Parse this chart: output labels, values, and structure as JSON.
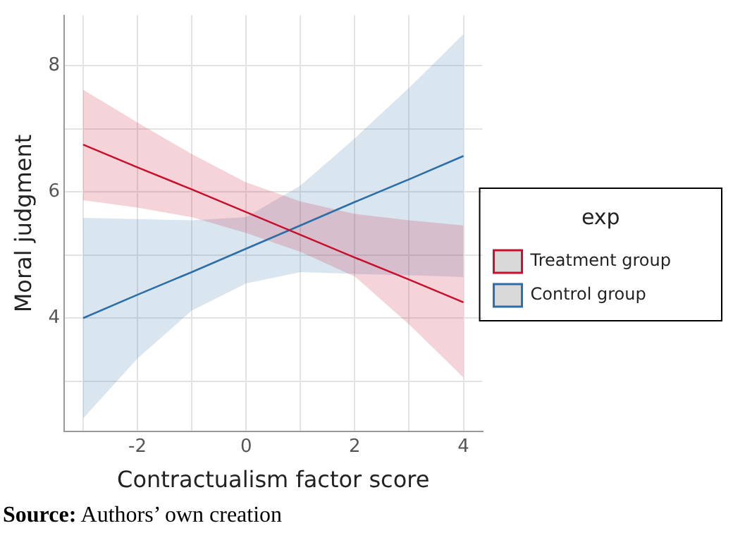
{
  "chart_data": {
    "type": "line",
    "xlabel": "Contractualism factor score",
    "ylabel": "Moral judgment",
    "legend_title": "exp",
    "series": [
      {
        "name": "Treatment group",
        "color": "#c8102e",
        "x": [
          -3,
          -2,
          -1,
          0,
          1,
          2,
          3,
          4
        ],
        "values": [
          6.75,
          6.39,
          6.04,
          5.68,
          5.32,
          4.96,
          4.61,
          4.25
        ],
        "lower": [
          5.87,
          5.75,
          5.6,
          5.35,
          5.05,
          4.66,
          3.9,
          3.06
        ],
        "upper": [
          7.62,
          7.1,
          6.6,
          6.15,
          5.85,
          5.65,
          5.55,
          5.47
        ]
      },
      {
        "name": "Control group",
        "color": "#2c6fa8",
        "x": [
          -3,
          -2,
          -1,
          0,
          1,
          2,
          3,
          4
        ],
        "values": [
          4.0,
          4.37,
          4.73,
          5.1,
          5.47,
          5.84,
          6.2,
          6.57
        ],
        "lower": [
          2.41,
          3.36,
          4.12,
          4.55,
          4.73,
          4.7,
          4.68,
          4.65
        ],
        "upper": [
          5.59,
          5.57,
          5.55,
          5.6,
          6.1,
          6.85,
          7.65,
          8.5
        ]
      }
    ],
    "xlim": [
      -3.35,
      4.35
    ],
    "xticks": [
      {
        "value": -3,
        "label": null
      },
      -2,
      {
        "value": -1,
        "label": null
      },
      0,
      {
        "value": 1,
        "label": null
      },
      2,
      {
        "value": 3,
        "label": null
      },
      4
    ],
    "ylim": [
      2.2,
      8.8
    ],
    "yticks": [
      {
        "value": 3,
        "label": null
      },
      4,
      {
        "value": 5,
        "label": null
      },
      6,
      {
        "value": 7,
        "label": null
      },
      8
    ],
    "grid": true,
    "legend": "right",
    "marker": "none",
    "line_style": "solid",
    "annotations": [
      "Source: Authors’ own creation"
    ]
  }
}
